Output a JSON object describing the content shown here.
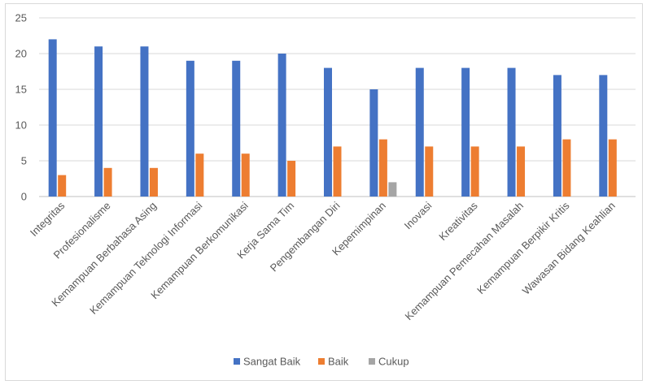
{
  "chart_data": {
    "type": "bar",
    "categories": [
      "Integritas",
      "Profesionalisme",
      "Kemampuan Berbahasa Asing",
      "Kemampuan Teknologi Informasi",
      "Kemampuan Berkomunikasi",
      "Kerja Sama Tim",
      "Pengembangan Diri",
      "Kepemimpinan",
      "Inovasi",
      "Kreativitas",
      "Kemampuan Pemecahan Masalah",
      "Kemampuan Berpikir Kritis",
      "Wawasan Bidang Keahlian"
    ],
    "series": [
      {
        "name": "Sangat Baik",
        "color": "#4472c4",
        "values": [
          22,
          21,
          21,
          19,
          19,
          20,
          18,
          15,
          18,
          18,
          18,
          17,
          17
        ]
      },
      {
        "name": "Baik",
        "color": "#ed7d31",
        "values": [
          3,
          4,
          4,
          6,
          6,
          5,
          7,
          8,
          7,
          7,
          7,
          8,
          8
        ]
      },
      {
        "name": "Cukup",
        "color": "#a5a5a5",
        "values": [
          0,
          0,
          0,
          0,
          0,
          0,
          0,
          2,
          0,
          0,
          0,
          0,
          0
        ]
      }
    ],
    "yticks": [
      0,
      5,
      10,
      15,
      20,
      25
    ],
    "ylim": [
      0,
      25
    ],
    "grid": true,
    "legend": "bottom"
  }
}
